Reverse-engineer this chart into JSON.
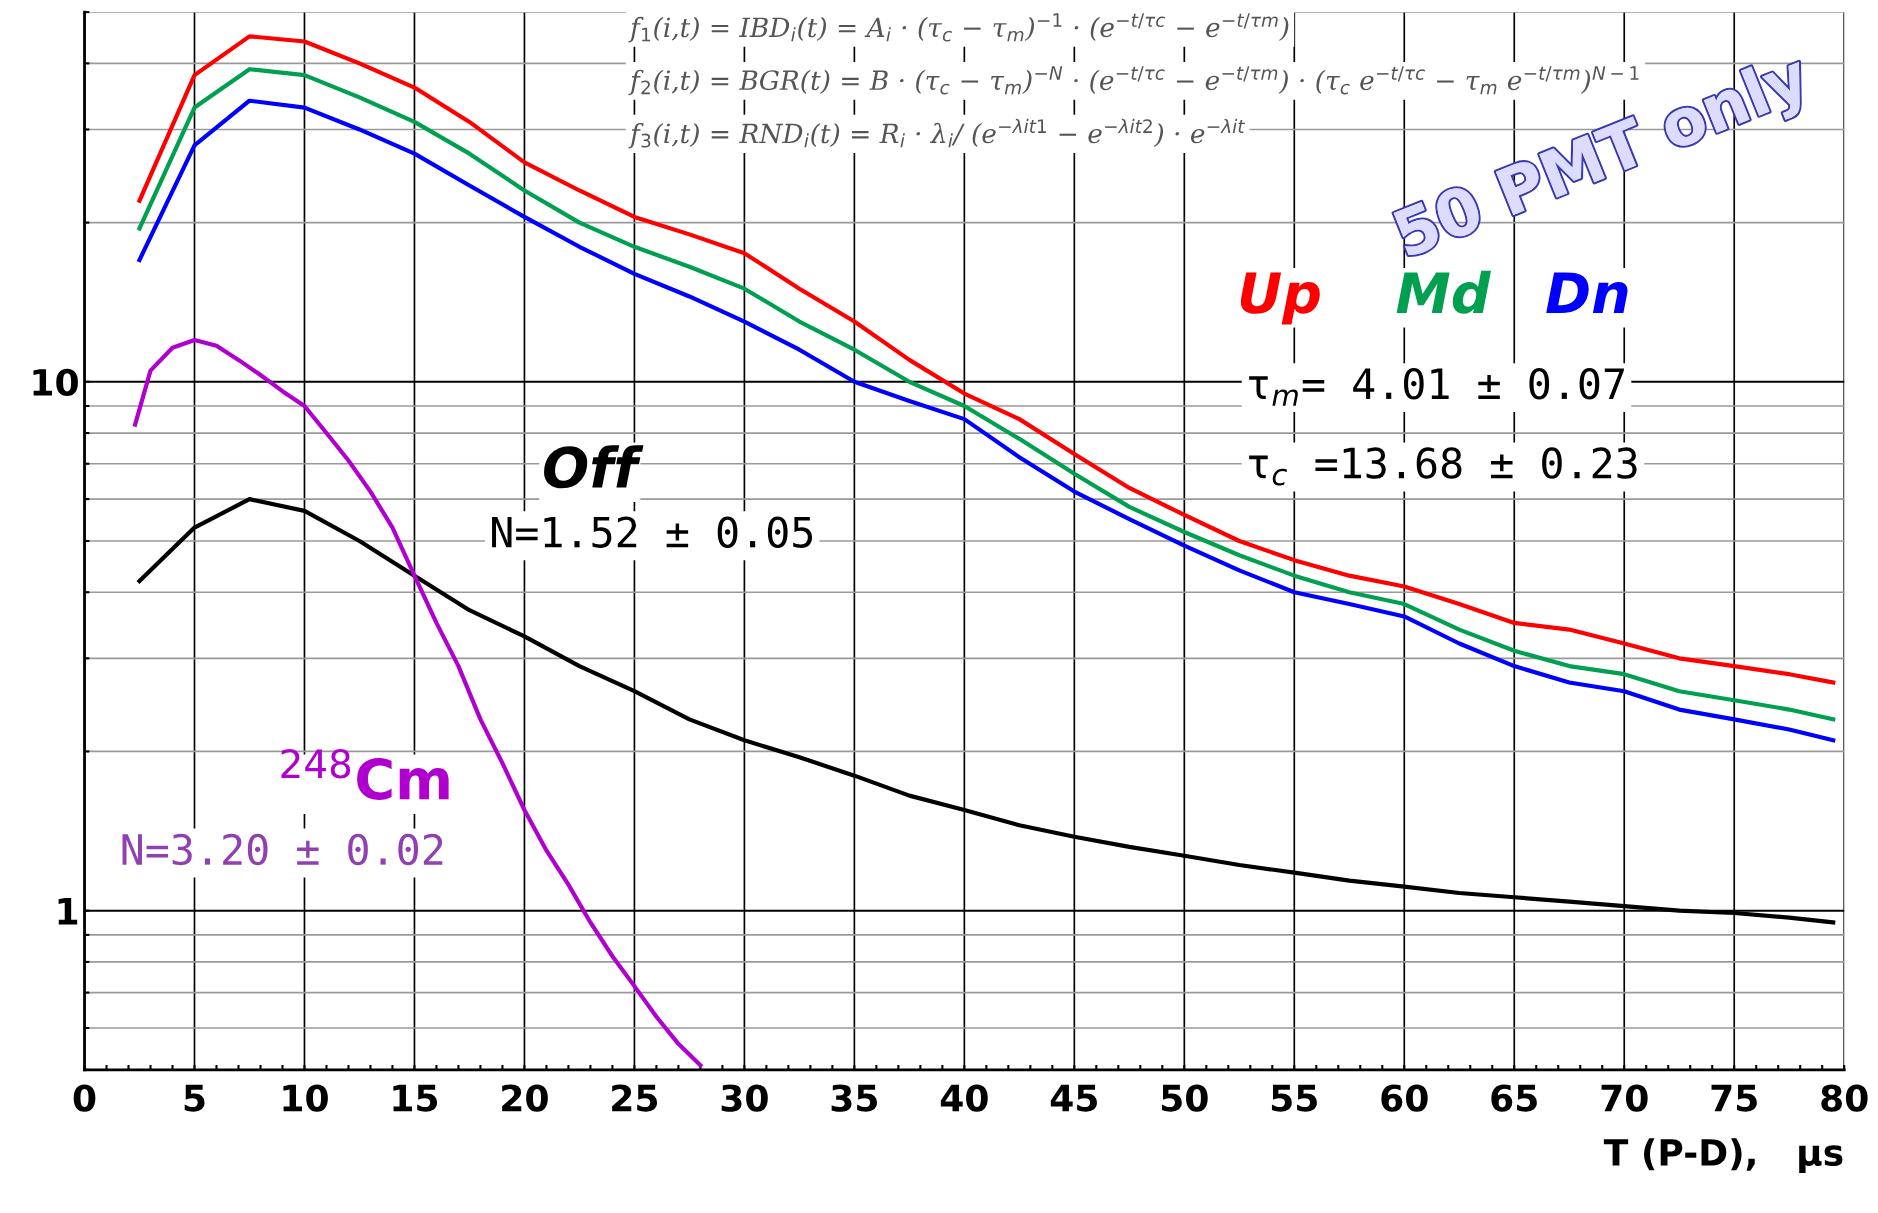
{
  "chart_data": {
    "type": "line",
    "xlabel": "T (P-D),   μs",
    "x": [
      2.5,
      5,
      7.5,
      10,
      12.5,
      15,
      17.5,
      20,
      22.5,
      25,
      27.5,
      30,
      32.5,
      35,
      37.5,
      40,
      42.5,
      45,
      47.5,
      50,
      52.5,
      55,
      57.5,
      60,
      62.5,
      65,
      67.5,
      70,
      72.5,
      75,
      77.5,
      79.5
    ],
    "series": [
      {
        "name": "Up",
        "color": "#ff0000",
        "values": [
          22,
          38,
          45,
          44,
          40,
          36,
          31,
          26,
          23,
          20.5,
          19,
          17.5,
          15,
          13,
          11,
          9.5,
          8.5,
          7.3,
          6.3,
          5.6,
          5,
          4.6,
          4.3,
          4.1,
          3.8,
          3.5,
          3.4,
          3.2,
          3.0,
          2.9,
          2.8,
          2.7
        ]
      },
      {
        "name": "Md",
        "color": "#00a050",
        "values": [
          19.5,
          33,
          39,
          38,
          34.5,
          31,
          27,
          23,
          20,
          18,
          16.5,
          15,
          13,
          11.5,
          10,
          9,
          7.8,
          6.7,
          5.8,
          5.2,
          4.7,
          4.3,
          4.0,
          3.8,
          3.4,
          3.1,
          2.9,
          2.8,
          2.6,
          2.5,
          2.4,
          2.3
        ]
      },
      {
        "name": "Dn",
        "color": "#0000ff",
        "values": [
          17,
          28,
          34,
          33,
          30,
          27,
          23.5,
          20.5,
          18,
          16,
          14.5,
          13,
          11.5,
          10,
          9.2,
          8.5,
          7.2,
          6.2,
          5.5,
          4.9,
          4.4,
          4.0,
          3.8,
          3.6,
          3.2,
          2.9,
          2.7,
          2.6,
          2.4,
          2.3,
          2.2,
          2.1
        ]
      },
      {
        "name": "Off",
        "color": "#000000",
        "values": [
          4.2,
          5.3,
          6.0,
          5.7,
          5.0,
          4.3,
          3.7,
          3.3,
          2.9,
          2.6,
          2.3,
          2.1,
          1.95,
          1.8,
          1.65,
          1.55,
          1.45,
          1.38,
          1.32,
          1.27,
          1.22,
          1.18,
          1.14,
          1.11,
          1.08,
          1.06,
          1.04,
          1.02,
          1.0,
          0.99,
          0.97,
          0.95
        ]
      },
      {
        "name": "$^{248}$Cm",
        "color": "#b000d0",
        "x": [
          2.3,
          3,
          4,
          5,
          6,
          7,
          8,
          9,
          10,
          11,
          12,
          13,
          14,
          15,
          16,
          17,
          18,
          19,
          20,
          21,
          22,
          23,
          24,
          25,
          26,
          27,
          28
        ],
        "values": [
          8.3,
          10.5,
          11.6,
          12,
          11.7,
          11,
          10.3,
          9.6,
          9.0,
          8.0,
          7.1,
          6.2,
          5.3,
          4.3,
          3.5,
          2.9,
          2.3,
          1.9,
          1.55,
          1.3,
          1.12,
          0.95,
          0.82,
          0.72,
          0.63,
          0.56,
          0.51
        ]
      }
    ],
    "log": "y",
    "xlim": [
      0,
      80
    ],
    "ylim": [
      0.5,
      50
    ],
    "xticks": [
      0,
      {
        "value": 1,
        "label": null
      },
      {
        "value": 2,
        "label": null
      },
      {
        "value": 3,
        "label": null
      },
      {
        "value": 4,
        "label": null
      },
      5,
      {
        "value": 6,
        "label": null
      },
      {
        "value": 7,
        "label": null
      },
      {
        "value": 8,
        "label": null
      },
      {
        "value": 9,
        "label": null
      },
      10,
      {
        "value": 11,
        "label": null
      },
      {
        "value": 12,
        "label": null
      },
      {
        "value": 13,
        "label": null
      },
      {
        "value": 14,
        "label": null
      },
      15,
      {
        "value": 16,
        "label": null
      },
      {
        "value": 17,
        "label": null
      },
      {
        "value": 18,
        "label": null
      },
      {
        "value": 19,
        "label": null
      },
      20,
      {
        "value": 21,
        "label": null
      },
      {
        "value": 22,
        "label": null
      },
      {
        "value": 23,
        "label": null
      },
      {
        "value": 24,
        "label": null
      },
      25,
      {
        "value": 26,
        "label": null
      },
      {
        "value": 27,
        "label": null
      },
      {
        "value": 28,
        "label": null
      },
      {
        "value": 29,
        "label": null
      },
      30,
      {
        "value": 31,
        "label": null
      },
      {
        "value": 32,
        "label": null
      },
      {
        "value": 33,
        "label": null
      },
      {
        "value": 34,
        "label": null
      },
      35,
      {
        "value": 36,
        "label": null
      },
      {
        "value": 37,
        "label": null
      },
      {
        "value": 38,
        "label": null
      },
      {
        "value": 39,
        "label": null
      },
      40,
      {
        "value": 41,
        "label": null
      },
      {
        "value": 42,
        "label": null
      },
      {
        "value": 43,
        "label": null
      },
      {
        "value": 44,
        "label": null
      },
      45,
      {
        "value": 46,
        "label": null
      },
      {
        "value": 47,
        "label": null
      },
      {
        "value": 48,
        "label": null
      },
      {
        "value": 49,
        "label": null
      },
      50,
      {
        "value": 51,
        "label": null
      },
      {
        "value": 52,
        "label": null
      },
      {
        "value": 53,
        "label": null
      },
      {
        "value": 54,
        "label": null
      },
      55,
      {
        "value": 56,
        "label": null
      },
      {
        "value": 57,
        "label": null
      },
      {
        "value": 58,
        "label": null
      },
      {
        "value": 59,
        "label": null
      },
      60,
      {
        "value": 61,
        "label": null
      },
      {
        "value": 62,
        "label": null
      },
      {
        "value": 63,
        "label": null
      },
      {
        "value": 64,
        "label": null
      },
      65,
      {
        "value": 66,
        "label": null
      },
      {
        "value": 67,
        "label": null
      },
      {
        "value": 68,
        "label": null
      },
      {
        "value": 69,
        "label": null
      },
      70,
      {
        "value": 71,
        "label": null
      },
      {
        "value": 72,
        "label": null
      },
      {
        "value": 73,
        "label": null
      },
      {
        "value": 74,
        "label": null
      },
      75,
      {
        "value": 76,
        "label": null
      },
      {
        "value": 77,
        "label": null
      },
      {
        "value": 78,
        "label": null
      },
      {
        "value": 79,
        "label": null
      },
      80
    ],
    "yticks": [
      {
        "value": 0.5,
        "label": null
      },
      {
        "value": 0.6,
        "label": null
      },
      {
        "value": 0.7,
        "label": null
      },
      {
        "value": 0.8,
        "label": null
      },
      {
        "value": 0.9,
        "label": null
      },
      1,
      {
        "value": 2,
        "label": null
      },
      {
        "value": 3,
        "label": null
      },
      {
        "value": 4,
        "label": null
      },
      {
        "value": 5,
        "label": null
      },
      {
        "value": 6,
        "label": null
      },
      {
        "value": 7,
        "label": null
      },
      {
        "value": 8,
        "label": null
      },
      {
        "value": 9,
        "label": null
      },
      10,
      {
        "value": 20,
        "label": null
      },
      {
        "value": 30,
        "label": null
      },
      {
        "value": 40,
        "label": null
      },
      {
        "value": 50,
        "label": null
      }
    ],
    "grid": true,
    "line_style": "solid",
    "marker": "none",
    "legend": false,
    "annotations": [
      "f$_{1}$(i,t) = IBD$_{i}$(t) = A$_{i}$ · (τ$_{c}$ − τ$_{m}$)$^{−1}$ · (e$^{−t/τc}$ − e$^{−t/τm}$)",
      "f$_{2}$(i,t) = BGR(t) = B · (τ$_{c}$ − τ$_{m}$)$^{−N}$ · (e$^{−t/τc}$ − e$^{−t/τm}$) · (τ$_{c}$ e$^{−t/τc}$ − τ$_{m}$ e$^{−t/τm}$)$^{N−1}$",
      "f$_{3}$(i,t) = RND$_{i}$(t) = R$_{i}$ · λ$_{i}$/ (e$^{−λit1}$ − e$^{−λit2}$) · e$^{−λit}$",
      "50 PMT only",
      "τ$_{m}$= 4.01 ± 0.07",
      "τ$_{c}$ =13.68 ± 0.23",
      "N=1.52 ± 0.05",
      "N=3.20 ± 0.02"
    ]
  }
}
